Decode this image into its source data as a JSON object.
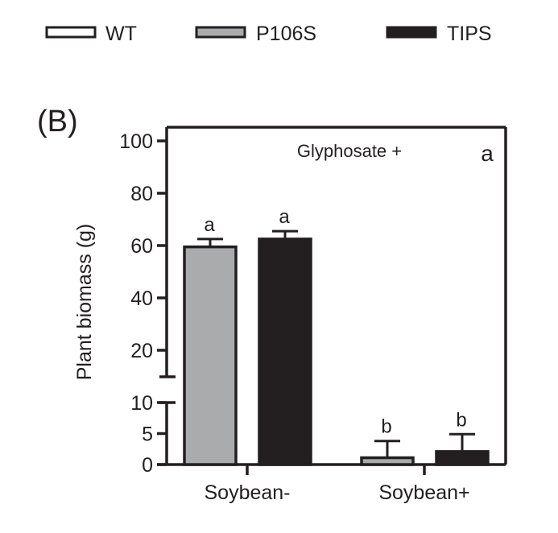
{
  "panel_label": "(B)",
  "colors": {
    "WT": "#ffffff",
    "P106S": "#a9abad",
    "TIPS": "#231f20",
    "stroke": "#231f20"
  },
  "chart_data": {
    "type": "bar",
    "title": "Glyphosate +",
    "corner_label": "a",
    "xlabel": "",
    "ylabel": "Plant biomass (g)",
    "categories": [
      "Soybean-",
      "Soybean+"
    ],
    "legend": [
      "WT",
      "P106S",
      "TIPS"
    ],
    "legend_placement": "top",
    "axis_break": {
      "lower": [
        0,
        10
      ],
      "upper": [
        20,
        100
      ]
    },
    "yticks_lower": [
      "0",
      "5",
      "10"
    ],
    "yticks_upper": [
      "20",
      "40",
      "60",
      "80",
      "100"
    ],
    "series": [
      {
        "name": "P106S",
        "values": [
          59.5,
          1.1
        ],
        "errors": [
          3.0,
          2.7
        ],
        "labels": [
          "a",
          "b"
        ]
      },
      {
        "name": "TIPS",
        "values": [
          62.5,
          2.1
        ],
        "errors": [
          3.0,
          2.8
        ],
        "labels": [
          "a",
          "b"
        ]
      }
    ]
  }
}
